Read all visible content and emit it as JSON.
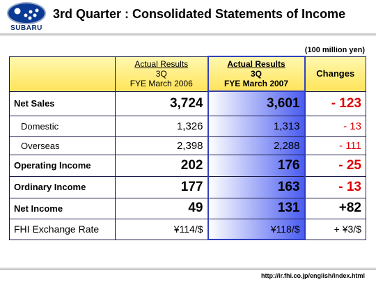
{
  "header": {
    "logo_text": "SUBARU",
    "title": "3rd Quarter : Consolidated Statements of Income"
  },
  "unit": "(100 million yen)",
  "table": {
    "columns": [
      [
        "Actual Results",
        "3Q",
        "FYE March 2006"
      ],
      [
        "Actual Results",
        "3Q",
        "FYE March 2007"
      ],
      [
        "Changes"
      ]
    ],
    "rows": [
      [
        "Net Sales",
        "3,724",
        "3,601",
        "- 123"
      ],
      [
        "Domestic",
        "1,326",
        "1,313",
        "- 13"
      ],
      [
        "Overseas",
        "2,398",
        "2,288",
        "- 111"
      ],
      [
        "Operating Income",
        "202",
        "176",
        "- 25"
      ],
      [
        "Ordinary Income",
        "177",
        "163",
        "- 13"
      ],
      [
        "Net Income",
        "49",
        "131",
        "+82"
      ],
      [
        "FHI Exchange Rate",
        "¥114/$",
        "¥118/$",
        "+ ¥3/$"
      ]
    ]
  },
  "footer": {
    "url": "http://ir.fhi.co.jp/english/index.html"
  }
}
